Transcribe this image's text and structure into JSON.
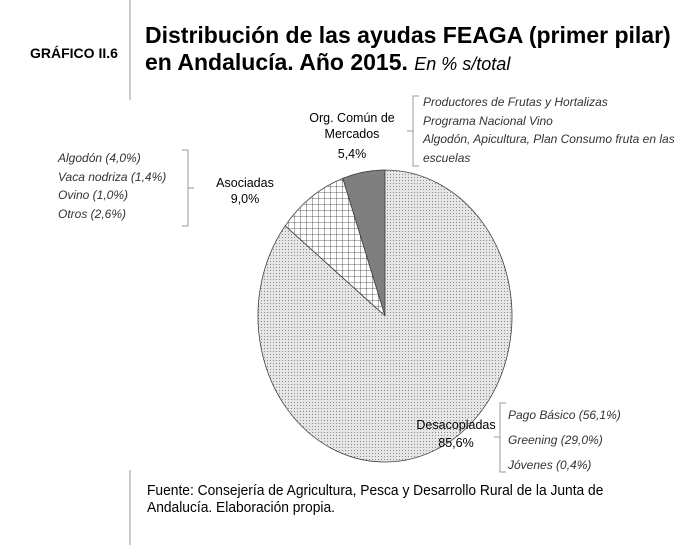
{
  "header": {
    "label": "GRÁFICO II.6"
  },
  "chart_data": {
    "type": "pie",
    "title": "Distribución de las ayudas FEAGA (primer pilar) en Andalucía. Año 2015.",
    "subtitle": "En % s/total",
    "categories": [
      "Org. Común de Mercados",
      "Asociadas",
      "Desacopladas"
    ],
    "values": [
      5.4,
      9.0,
      85.6
    ],
    "value_labels": [
      "5,4%",
      "9,0%",
      "85,6%"
    ],
    "colors": [
      "#7f7f7f",
      "#ffffff",
      "#d9d9d9"
    ],
    "patterns": [
      "solid",
      "crosshatch",
      "dots"
    ],
    "annotations": [
      [
        "Productores de Frutas y Hortalizas",
        "Programa Nacional Vino",
        "Algodón, Apicultura, Plan Consumo fruta en las escuelas"
      ],
      [
        "Algodón (4,0%)",
        "Vaca nodriza (1,4%)",
        "Ovino (1,0%)",
        "Otros (2,6%)"
      ],
      [
        "Pago Básico (56,1%)",
        "Greening (29,0%)",
        "Jóvenes (0,4%)"
      ]
    ],
    "source": "Fuente: Consejería de Agricultura, Pesca y Desarrollo Rural de la Junta de Andalucía. Elaboración propia."
  }
}
